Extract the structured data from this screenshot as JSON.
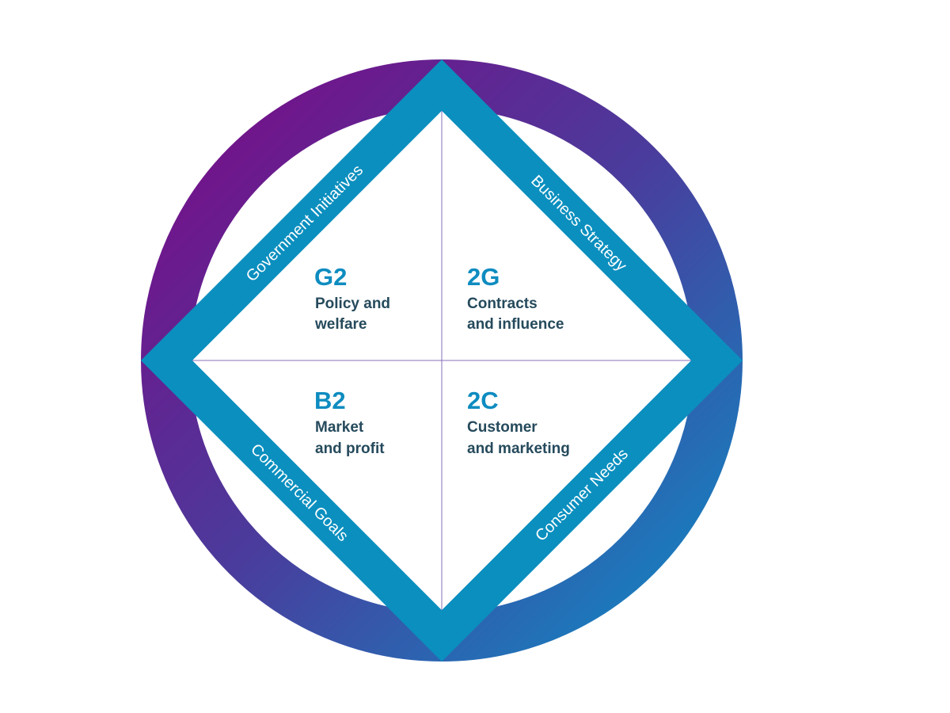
{
  "colors": {
    "ring_start": "#7b0a86",
    "ring_end": "#1483c0",
    "diamond_band": "#0b8fbf",
    "quad_code": "#0e8cc0",
    "quad_text": "#254a5c",
    "divider": "#8a6fb8"
  },
  "band_labels": {
    "top_left": "Government Initiatives",
    "top_right": "Business Strategy",
    "bottom_left": "Commercial Goals",
    "bottom_right": "Consumer Needs"
  },
  "quadrants": [
    {
      "code": "G2",
      "line1": "Policy and",
      "line2": "welfare"
    },
    {
      "code": "2G",
      "line1": "Contracts",
      "line2": "and influence"
    },
    {
      "code": "B2",
      "line1": "Market",
      "line2": "and profit"
    },
    {
      "code": "2C",
      "line1": "Customer",
      "line2": "and marketing"
    }
  ]
}
